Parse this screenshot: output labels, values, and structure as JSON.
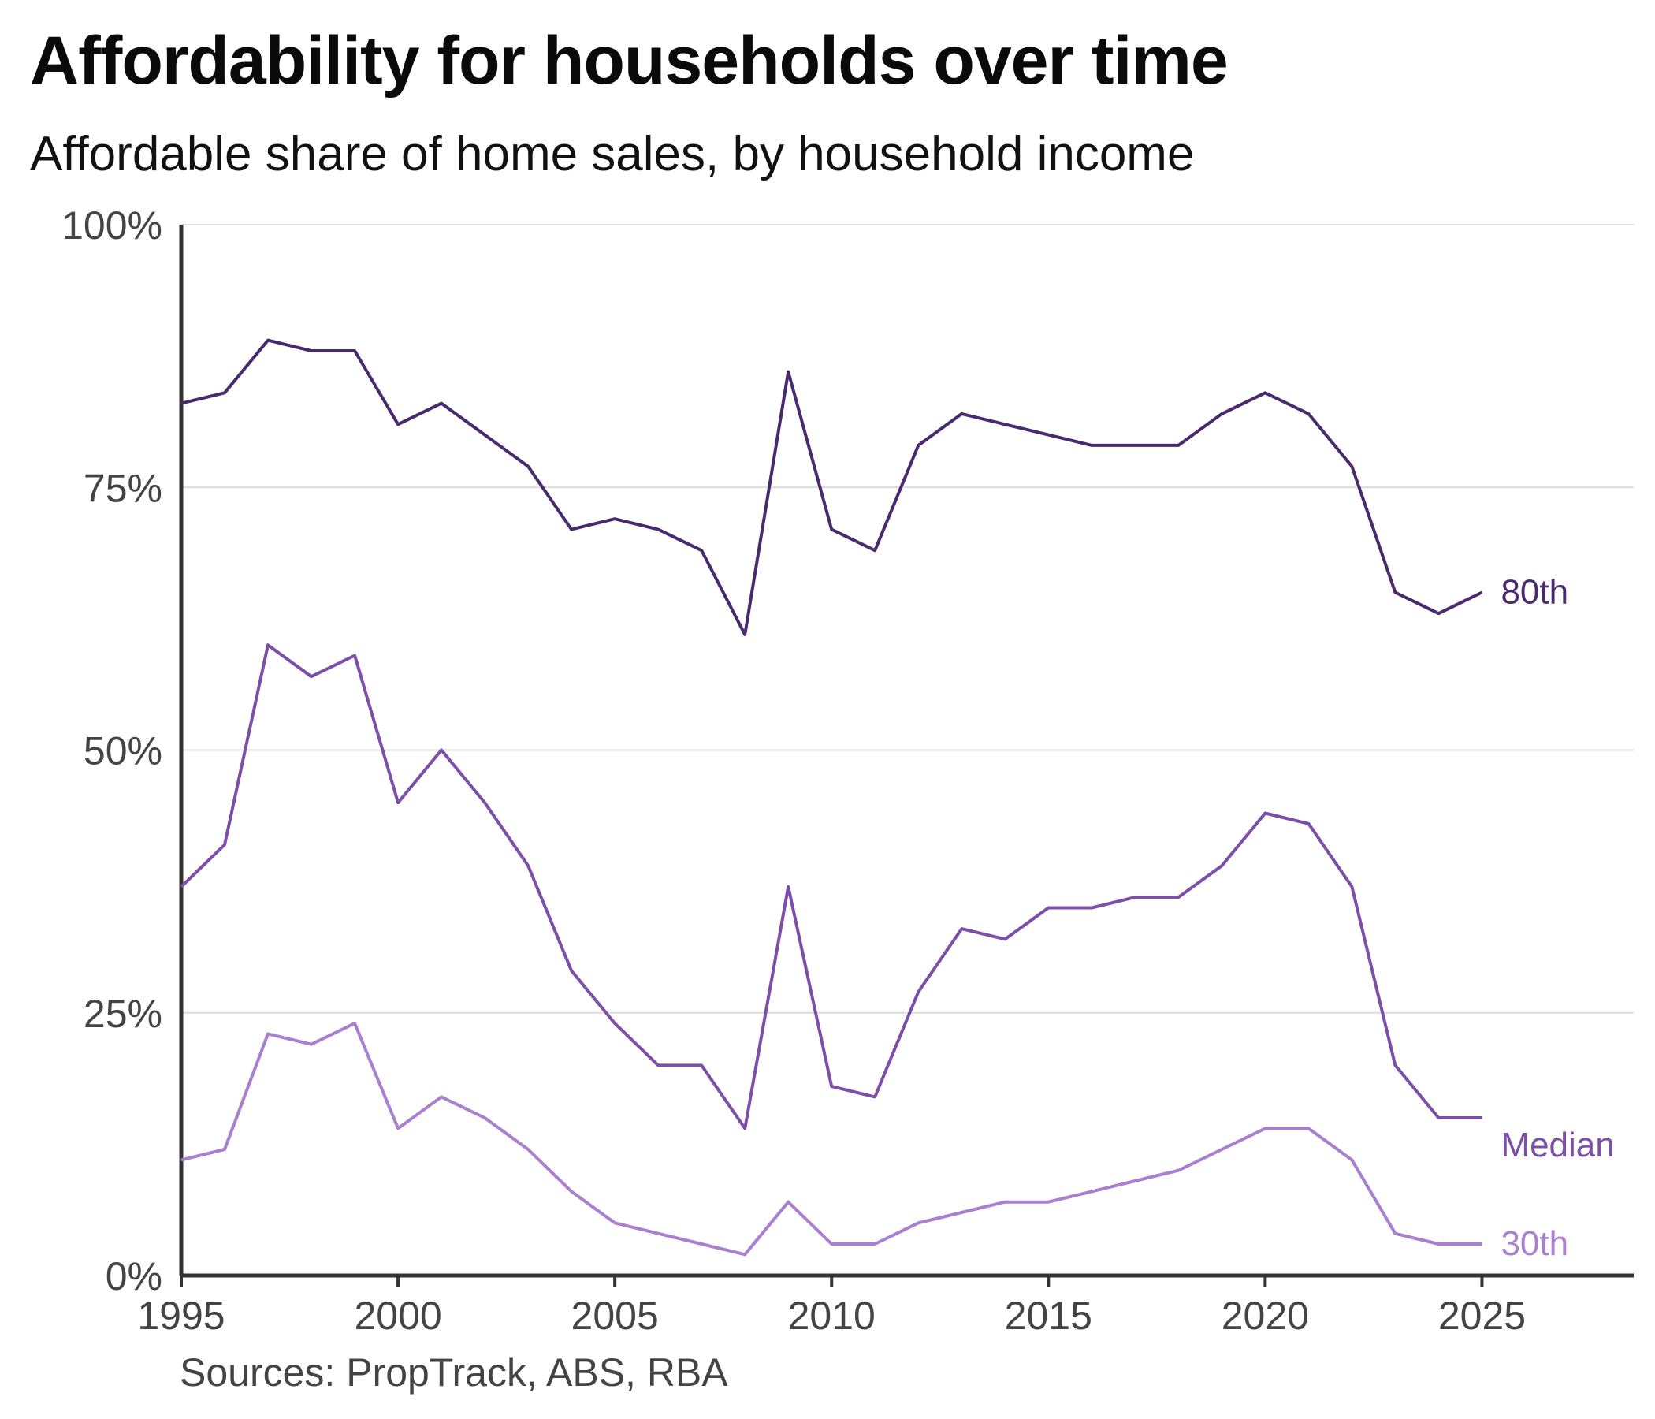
{
  "title": "Affordability for households over time",
  "subtitle": "Affordable share of home sales, by household income",
  "source": "Sources: PropTrack, ABS, RBA",
  "chart_data": {
    "type": "line",
    "title": "Affordability for households over time",
    "subtitle": "Affordable share of home sales, by household income",
    "xlim": [
      1995,
      2028.5
    ],
    "ylim": [
      0,
      100
    ],
    "x_ticks": [
      "1995",
      "2000",
      "2005",
      "2010",
      "2015",
      "2020",
      "2025"
    ],
    "y_ticks": [
      "0%",
      "25%",
      "50%",
      "75%",
      "100%"
    ],
    "grid": "horizontal",
    "legend": "inline labels at line ends",
    "x": [
      1995,
      1996,
      1997,
      1998,
      1999,
      2000,
      2001,
      2002,
      2003,
      2004,
      2005,
      2006,
      2007,
      2008,
      2009,
      2010,
      2011,
      2012,
      2013,
      2014,
      2015,
      2016,
      2017,
      2018,
      2019,
      2020,
      2021,
      2022,
      2023,
      2024,
      2025
    ],
    "series": [
      {
        "name": "80th",
        "color": "#4a2a6e",
        "values": [
          83,
          84,
          89,
          88,
          88,
          81,
          83,
          80,
          77,
          71,
          72,
          71,
          69,
          61,
          86,
          71,
          69,
          79,
          82,
          81,
          80,
          79,
          79,
          79,
          82,
          84,
          82,
          77,
          65,
          63,
          65
        ]
      },
      {
        "name": "Median",
        "color": "#7c4fa8",
        "values": [
          37,
          41,
          60,
          57,
          59,
          45,
          50,
          45,
          39,
          29,
          24,
          20,
          20,
          14,
          37,
          18,
          17,
          27,
          33,
          32,
          35,
          35,
          36,
          36,
          39,
          44,
          43,
          37,
          20,
          15,
          15
        ]
      },
      {
        "name": "30th",
        "color": "#a97fd0",
        "values": [
          11,
          12,
          23,
          22,
          24,
          14,
          17,
          15,
          12,
          8,
          5,
          4,
          3,
          2,
          7,
          3,
          3,
          5,
          6,
          7,
          7,
          8,
          9,
          10,
          12,
          14,
          14,
          11,
          4,
          3,
          3
        ]
      }
    ]
  }
}
